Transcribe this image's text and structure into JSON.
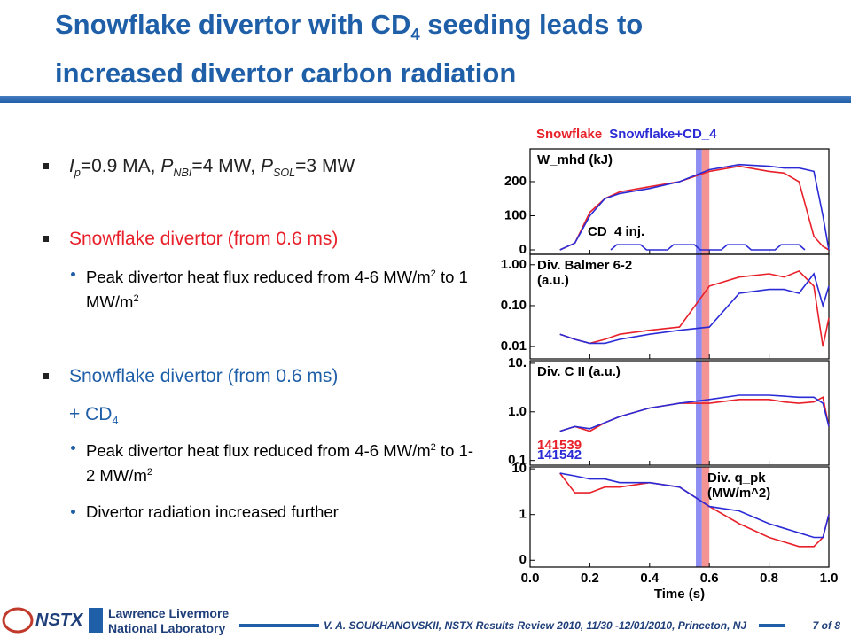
{
  "slide": {
    "title": [
      "Snowflake divertor with CD",
      "4",
      " seeding leads to",
      "increased divertor carbon radiation"
    ],
    "bullets": [
      {
        "parts": [
          "I",
          "p",
          "=0.9 MA, ",
          "P",
          "NBI",
          "=4 MW, ",
          "P",
          "SOL",
          "=3 MW"
        ]
      },
      {
        "parts": [
          "Snowflake divertor (from 0.6 ms)"
        ],
        "sub": [
          {
            "parts": [
              "Peak divertor heat flux reduced from 4-6 MW/m",
              "2",
              " to 1 MW/m",
              "2"
            ]
          }
        ]
      },
      {
        "parts": [
          "Snowflake divertor (from 0.6 ms)",
          "+ CD",
          "4"
        ],
        "sub": [
          {
            "parts": [
              "Peak divertor heat flux reduced from 4-6 MW/m",
              "2",
              " to 1-2 MW/m",
              "2"
            ]
          },
          {
            "parts": [
              "Divertor radiation increased further"
            ]
          }
        ]
      }
    ],
    "footer": {
      "logo1": "NSTX",
      "logo2": [
        "Lawrence Livermore",
        "National Laboratory"
      ],
      "citation": "V. A. SOUKHANOVSKII, NSTX Results Review 2010, 11/30 -12/01/2010, Princeton, NJ",
      "page": "7 of 8"
    }
  },
  "chart_data": [
    {
      "type": "line",
      "label": [
        "W_mhd (kJ)"
      ],
      "annotation": "CD_4 inj.",
      "x": [
        0.1,
        0.15,
        0.2,
        0.25,
        0.3,
        0.4,
        0.5,
        0.6,
        0.7,
        0.8,
        0.85,
        0.9,
        0.95,
        0.98,
        1.0
      ],
      "series": [
        {
          "name": "Snowflake",
          "color": "#e8202a",
          "values": [
            0,
            20,
            110,
            150,
            170,
            185,
            200,
            230,
            245,
            230,
            225,
            200,
            40,
            10,
            0
          ]
        },
        {
          "name": "Snowflake+CD_4",
          "color": "#2b2bd6",
          "values": [
            0,
            20,
            100,
            150,
            165,
            180,
            200,
            235,
            250,
            245,
            240,
            240,
            230,
            100,
            0
          ]
        },
        {
          "color": "#2b2bd6",
          "x": [
            0.27,
            0.29,
            0.37,
            0.39,
            0.46,
            0.48,
            0.55,
            0.57,
            0.64,
            0.66,
            0.72,
            0.74,
            0.82,
            0.84,
            0.9,
            0.92
          ],
          "values": [
            0,
            15,
            15,
            0,
            0,
            15,
            15,
            0,
            0,
            15,
            15,
            0,
            0,
            15,
            15,
            0
          ]
        }
      ],
      "bands": [
        {
          "x": [
            0.555,
            0.575
          ],
          "color": "#7070f0"
        },
        {
          "x": [
            0.575,
            0.6
          ],
          "color": "#f07878"
        }
      ],
      "xlim": [
        0,
        1
      ],
      "ylim": [
        -13,
        296
      ],
      "yticks": [
        0,
        100,
        200
      ],
      "xticks": [
        {
          "value": 0,
          "label": "0.0"
        },
        {
          "value": 0.2,
          "label": "0.2"
        },
        {
          "value": 0.4,
          "label": "0.4"
        },
        {
          "value": 0.6,
          "label": "0.6"
        },
        {
          "value": 0.8,
          "label": "0.8"
        },
        {
          "value": 1,
          "label": "1.0"
        }
      ]
    },
    {
      "type": "line",
      "label": [
        "Div. Balmer 6-2",
        "(a.u.)"
      ],
      "yscale": "log",
      "x": [
        0.1,
        0.15,
        0.2,
        0.25,
        0.3,
        0.4,
        0.5,
        0.6,
        0.7,
        0.8,
        0.85,
        0.9,
        0.95,
        0.98,
        1.0
      ],
      "series": [
        {
          "color": "#e8202a",
          "values": [
            0.02,
            0.015,
            0.012,
            0.015,
            0.02,
            0.025,
            0.03,
            0.3,
            0.5,
            0.6,
            0.5,
            0.7,
            0.3,
            0.01,
            0.05
          ]
        },
        {
          "color": "#2b2bd6",
          "values": [
            0.02,
            0.015,
            0.012,
            0.012,
            0.015,
            0.02,
            0.025,
            0.03,
            0.2,
            0.25,
            0.25,
            0.2,
            0.6,
            0.1,
            0.3
          ]
        }
      ],
      "xlim": [
        0,
        1
      ],
      "ylim": [
        0.005,
        1.8
      ],
      "yticks": [
        {
          "value": 1,
          "label": "1.00"
        },
        {
          "value": 0.1,
          "label": "0.10"
        },
        {
          "value": 0.01,
          "label": "0.01"
        }
      ]
    },
    {
      "type": "line",
      "label": [
        "Div. C II (a.u.)"
      ],
      "yscale": "log",
      "x": [
        0.1,
        0.15,
        0.2,
        0.25,
        0.3,
        0.4,
        0.5,
        0.6,
        0.7,
        0.8,
        0.85,
        0.9,
        0.95,
        0.98,
        1.0
      ],
      "series": [
        {
          "name": "141539",
          "color": "#e8202a",
          "values": [
            0.4,
            0.5,
            0.4,
            0.6,
            0.8,
            1.2,
            1.5,
            1.5,
            1.8,
            1.8,
            1.6,
            1.5,
            1.6,
            2,
            0.5
          ]
        },
        {
          "name": "141542",
          "color": "#2b2bd6",
          "values": [
            0.4,
            0.5,
            0.45,
            0.6,
            0.8,
            1.2,
            1.5,
            1.8,
            2.2,
            2.2,
            2.1,
            2.0,
            2.0,
            1.5,
            0.5
          ]
        }
      ],
      "xlim": [
        0,
        1
      ],
      "ylim": [
        0.08,
        11.3
      ],
      "yticks": [
        {
          "value": 10,
          "label": "10."
        },
        {
          "value": 1,
          "label": "1.0"
        },
        {
          "value": 0.1,
          "label": "0.1"
        }
      ]
    },
    {
      "type": "line",
      "label": [
        "Div. q_pk",
        "(MW/m^2)"
      ],
      "yscale": "symlog",
      "xlabel": "Time (s)",
      "x": [
        0.1,
        0.15,
        0.2,
        0.25,
        0.3,
        0.4,
        0.5,
        0.6,
        0.7,
        0.8,
        0.85,
        0.9,
        0.95,
        0.98,
        1.0
      ],
      "series": [
        {
          "color": "#e8202a",
          "values": [
            8,
            3,
            3,
            4,
            4,
            5,
            4,
            1.5,
            0.8,
            0.5,
            0.4,
            0.3,
            0.3,
            0.5,
            1
          ]
        },
        {
          "color": "#2b2bd6",
          "values": [
            8,
            7,
            6,
            6,
            5,
            5,
            4,
            1.5,
            1.2,
            0.8,
            0.7,
            0.6,
            0.5,
            0.5,
            1
          ]
        }
      ],
      "xlim": [
        0,
        1
      ],
      "ylim": [
        -0.15,
        11
      ],
      "yticks": [
        10,
        1,
        0
      ],
      "xticks": [
        {
          "value": 0,
          "label": "0.0"
        },
        {
          "value": 0.2,
          "label": "0.2"
        },
        {
          "value": 0.4,
          "label": "0.4"
        },
        {
          "value": 0.6,
          "label": "0.6"
        },
        {
          "value": 0.8,
          "label": "0.8"
        },
        {
          "value": 1,
          "label": "1.0"
        }
      ]
    }
  ]
}
